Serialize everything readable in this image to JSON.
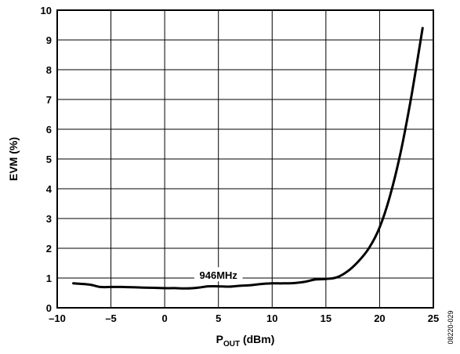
{
  "chart_data": {
    "type": "line",
    "title": "",
    "xlabel": {
      "main": "P",
      "sub": "OUT",
      "suffix": " (dBm)"
    },
    "ylabel": "EVM (%)",
    "xlim": [
      -10,
      25
    ],
    "ylim": [
      0,
      10
    ],
    "grid": true,
    "x_ticks": [
      -10,
      -5,
      0,
      5,
      10,
      15,
      20,
      25
    ],
    "x_tick_labels": [
      "–10",
      "–5",
      "0",
      "5",
      "10",
      "15",
      "20",
      "25"
    ],
    "y_ticks": [
      0,
      1,
      2,
      3,
      4,
      5,
      6,
      7,
      8,
      9,
      10
    ],
    "y_tick_labels": [
      "0",
      "1",
      "2",
      "3",
      "4",
      "5",
      "6",
      "7",
      "8",
      "9",
      "10"
    ],
    "annotations": [
      {
        "text": "946MHz",
        "x": 5,
        "y": 1.1
      }
    ],
    "series": [
      {
        "x": [
          -8.5,
          -7,
          -6,
          -5,
          -4,
          -3,
          -2,
          -1,
          0,
          1,
          2,
          3,
          4,
          5,
          6,
          7,
          8,
          9,
          10,
          11,
          12,
          13,
          14,
          15,
          16,
          17,
          18,
          19,
          20,
          21,
          22,
          23,
          24
        ],
        "values": [
          0.82,
          0.78,
          0.7,
          0.7,
          0.7,
          0.69,
          0.68,
          0.67,
          0.66,
          0.66,
          0.65,
          0.67,
          0.72,
          0.72,
          0.71,
          0.74,
          0.76,
          0.8,
          0.82,
          0.82,
          0.83,
          0.87,
          0.95,
          0.97,
          1.02,
          1.22,
          1.55,
          2.0,
          2.7,
          3.8,
          5.3,
          7.2,
          9.4
        ]
      }
    ]
  },
  "figure_id": "08220-029"
}
